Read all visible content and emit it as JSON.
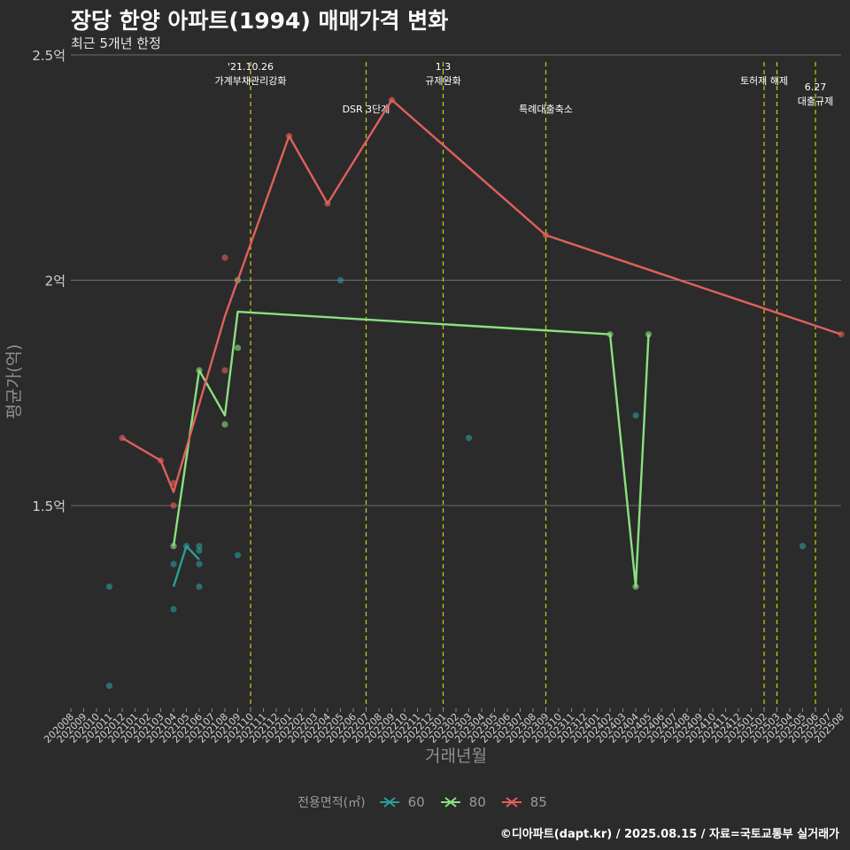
{
  "title": "장당 한양 아파트(1994) 매매가격 변화",
  "subtitle": "최근 5개년 한정",
  "caption": "©디아파트(dapt.kr) / 2025.08.15 / 자료=국토교통부 실거래가",
  "legend_title": "전용면적(㎡)",
  "colors": {
    "s60": "#2a9d9a",
    "s80": "#8ae07f",
    "s85": "#e0605c",
    "event_line": "#c8d400"
  },
  "chart_data": {
    "type": "line",
    "xlabel": "거래년월",
    "ylabel": "평균가(억)",
    "ylim": [
      1.05,
      2.5
    ],
    "yticks": [
      1.5,
      2.0,
      2.5
    ],
    "ytick_labels": [
      "1.5억",
      "2억",
      "2.5억"
    ],
    "grid": true,
    "legend_position": "bottom",
    "categories": [
      "202008",
      "202009",
      "202010",
      "202011",
      "202012",
      "202101",
      "202102",
      "202103",
      "202104",
      "202105",
      "202106",
      "202107",
      "202108",
      "202109",
      "202110",
      "202111",
      "202112",
      "202201",
      "202202",
      "202203",
      "202204",
      "202205",
      "202206",
      "202207",
      "202208",
      "202209",
      "202210",
      "202211",
      "202212",
      "202301",
      "202302",
      "202303",
      "202304",
      "202305",
      "202306",
      "202307",
      "202308",
      "202309",
      "202310",
      "202311",
      "202312",
      "202401",
      "202402",
      "202403",
      "202404",
      "202405",
      "202406",
      "202407",
      "202408",
      "202409",
      "202410",
      "202411",
      "202412",
      "202501",
      "202502",
      "202503",
      "202504",
      "202505",
      "202506",
      "202507",
      "202508"
    ],
    "series": [
      {
        "name": "60",
        "line": [
          {
            "x": "202104",
            "y": 1.32
          },
          {
            "x": "202105",
            "y": 1.41
          },
          {
            "x": "202106",
            "y": 1.38
          }
        ],
        "points": [
          {
            "x": "202011",
            "y": 1.32
          },
          {
            "x": "202011",
            "y": 1.1
          },
          {
            "x": "202104",
            "y": 1.37
          },
          {
            "x": "202104",
            "y": 1.27
          },
          {
            "x": "202105",
            "y": 1.41
          },
          {
            "x": "202106",
            "y": 1.41
          },
          {
            "x": "202106",
            "y": 1.4
          },
          {
            "x": "202106",
            "y": 1.37
          },
          {
            "x": "202106",
            "y": 1.32
          },
          {
            "x": "202109",
            "y": 1.39
          },
          {
            "x": "202205",
            "y": 2.0
          },
          {
            "x": "202303",
            "y": 1.65
          },
          {
            "x": "202404",
            "y": 1.7
          },
          {
            "x": "202505",
            "y": 1.41
          }
        ]
      },
      {
        "name": "80",
        "line": [
          {
            "x": "202104",
            "y": 1.41
          },
          {
            "x": "202106",
            "y": 1.8
          },
          {
            "x": "202108",
            "y": 1.7
          },
          {
            "x": "202109",
            "y": 1.93
          },
          {
            "x": "202402",
            "y": 1.88
          },
          {
            "x": "202404",
            "y": 1.32
          },
          {
            "x": "202405",
            "y": 1.88
          }
        ],
        "points": [
          {
            "x": "202104",
            "y": 1.41
          },
          {
            "x": "202106",
            "y": 1.8
          },
          {
            "x": "202108",
            "y": 1.68
          },
          {
            "x": "202109",
            "y": 1.85
          },
          {
            "x": "202109",
            "y": 2.0
          },
          {
            "x": "202402",
            "y": 1.88
          },
          {
            "x": "202404",
            "y": 1.32
          },
          {
            "x": "202405",
            "y": 1.88
          }
        ]
      },
      {
        "name": "85",
        "line": [
          {
            "x": "202012",
            "y": 1.65
          },
          {
            "x": "202103",
            "y": 1.6
          },
          {
            "x": "202104",
            "y": 1.53
          },
          {
            "x": "202108",
            "y": 1.92
          },
          {
            "x": "202109",
            "y": 2.0
          },
          {
            "x": "202201",
            "y": 2.32
          },
          {
            "x": "202204",
            "y": 2.17
          },
          {
            "x": "202209",
            "y": 2.4
          },
          {
            "x": "202309",
            "y": 2.1
          },
          {
            "x": "202508",
            "y": 1.88
          }
        ],
        "points": [
          {
            "x": "202012",
            "y": 1.65
          },
          {
            "x": "202103",
            "y": 1.6
          },
          {
            "x": "202104",
            "y": 1.55
          },
          {
            "x": "202104",
            "y": 1.5
          },
          {
            "x": "202108",
            "y": 2.05
          },
          {
            "x": "202108",
            "y": 1.8
          },
          {
            "x": "202201",
            "y": 2.32
          },
          {
            "x": "202204",
            "y": 2.17
          },
          {
            "x": "202209",
            "y": 2.4
          },
          {
            "x": "202309",
            "y": 2.1
          },
          {
            "x": "202508",
            "y": 1.88
          }
        ]
      }
    ],
    "events": [
      {
        "x": "202110",
        "label": "'21.10.26\n가계부채관리강화",
        "row": 1
      },
      {
        "x": "202207",
        "label": "DSR 3단계",
        "row": 2
      },
      {
        "x": "202301",
        "label": "1.3\n규제완화",
        "row": 1
      },
      {
        "x": "202309",
        "label": "특례대출축소",
        "row": 2
      },
      {
        "x": "202502",
        "label": "토허제 해제",
        "row": 1
      },
      {
        "x": "202503",
        "label": "",
        "row": 1
      },
      {
        "x": "202506",
        "label": "6.27\n대출규제",
        "row": 3
      }
    ]
  }
}
